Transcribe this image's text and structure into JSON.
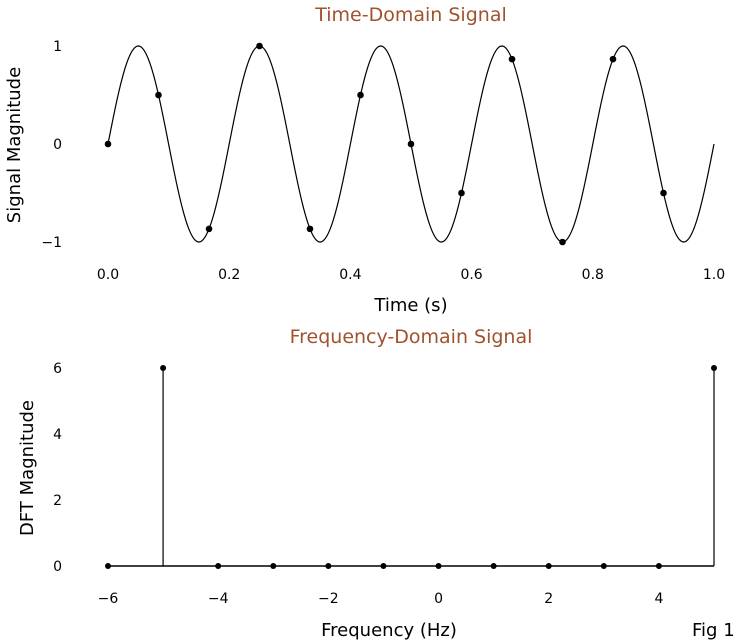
{
  "figure_label": "Fig 1",
  "chart_data": [
    {
      "type": "line",
      "title": "Time-Domain Signal",
      "xlabel": "Time (s)",
      "ylabel": "Signal Magnitude",
      "xlim": [
        0.0,
        1.0
      ],
      "ylim": [
        -1,
        1
      ],
      "xticks": [
        0.0,
        0.2,
        0.4,
        0.6,
        0.8,
        1.0
      ],
      "xtick_labels": [
        "0.0",
        "0.2",
        "0.4",
        "0.6",
        "0.8",
        "1.0"
      ],
      "yticks": [
        -1,
        0,
        1
      ],
      "ytick_labels": [
        "−1",
        "0",
        "1"
      ],
      "grid": false,
      "curve": {
        "description": "sin(2π·5·t)",
        "frequency_hz": 5,
        "amplitude": 1,
        "t_range": [
          0.0,
          1.0
        ]
      },
      "samples": {
        "x": [
          0.0,
          0.0833,
          0.1667,
          0.25,
          0.3333,
          0.4167,
          0.5,
          0.5833,
          0.6667,
          0.75,
          0.8333,
          0.9167
        ],
        "y": [
          0.0,
          0.5,
          -0.866,
          1.0,
          -0.866,
          0.5,
          0.0,
          -0.5,
          0.866,
          -1.0,
          0.866,
          -0.5
        ]
      }
    },
    {
      "type": "stem",
      "title": "Frequency-Domain Signal",
      "xlabel": "Frequency (Hz)",
      "ylabel": "DFT Magnitude",
      "xlim": [
        -6,
        5
      ],
      "ylim": [
        0,
        6
      ],
      "xticks": [
        -6,
        -4,
        -2,
        0,
        2,
        4
      ],
      "xtick_labels": [
        "−6",
        "−4",
        "−2",
        "0",
        "2",
        "4"
      ],
      "yticks": [
        0,
        2,
        4,
        6
      ],
      "ytick_labels": [
        "0",
        "2",
        "4",
        "6"
      ],
      "grid": false,
      "x": [
        -6,
        -5,
        -4,
        -3,
        -2,
        -1,
        0,
        1,
        2,
        3,
        4,
        5
      ],
      "y": [
        0,
        6,
        0,
        0,
        0,
        0,
        0,
        0,
        0,
        0,
        0,
        6
      ]
    }
  ]
}
